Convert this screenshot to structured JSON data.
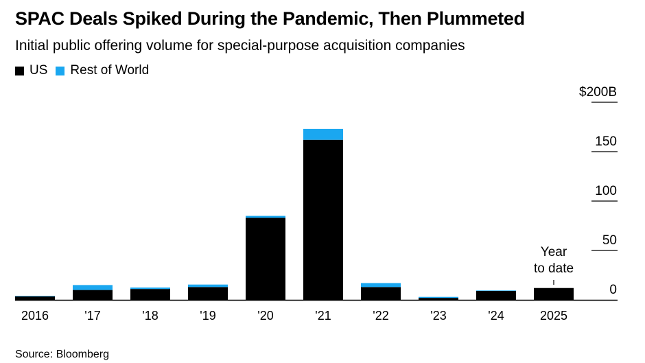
{
  "header": {
    "title": "SPAC Deals Spiked During the Pandemic, Then Plummeted",
    "subtitle": "Initial public offering volume for special-purpose acquisition companies"
  },
  "legend": {
    "items": [
      {
        "label": "US",
        "color": "#000000"
      },
      {
        "label": "Rest of World",
        "color": "#1aa7f0"
      }
    ]
  },
  "source": "Source: Bloomberg",
  "chart_data": {
    "type": "bar",
    "stacked": true,
    "categories": [
      "2016",
      "'17",
      "'18",
      "'19",
      "'20",
      "'21",
      "'22",
      "'23",
      "'24",
      "2025"
    ],
    "series": [
      {
        "name": "US",
        "color": "#000000",
        "values": [
          3.5,
          10,
          11,
          13,
          83,
          162,
          13,
          2,
          9,
          12
        ]
      },
      {
        "name": "Rest of World",
        "color": "#1aa7f0",
        "values": [
          0.5,
          5,
          1.5,
          2.5,
          2,
          11,
          4,
          1,
          0.5,
          0
        ]
      }
    ],
    "y_ticks": [
      "$200B",
      "150",
      "100",
      "50",
      "0"
    ],
    "y_tick_values": [
      200,
      150,
      100,
      50,
      0
    ],
    "ylim": [
      0,
      200
    ],
    "y_axis_position": "right",
    "annotation": {
      "category": "2025",
      "text_lines": [
        "Year",
        "to date"
      ]
    }
  }
}
